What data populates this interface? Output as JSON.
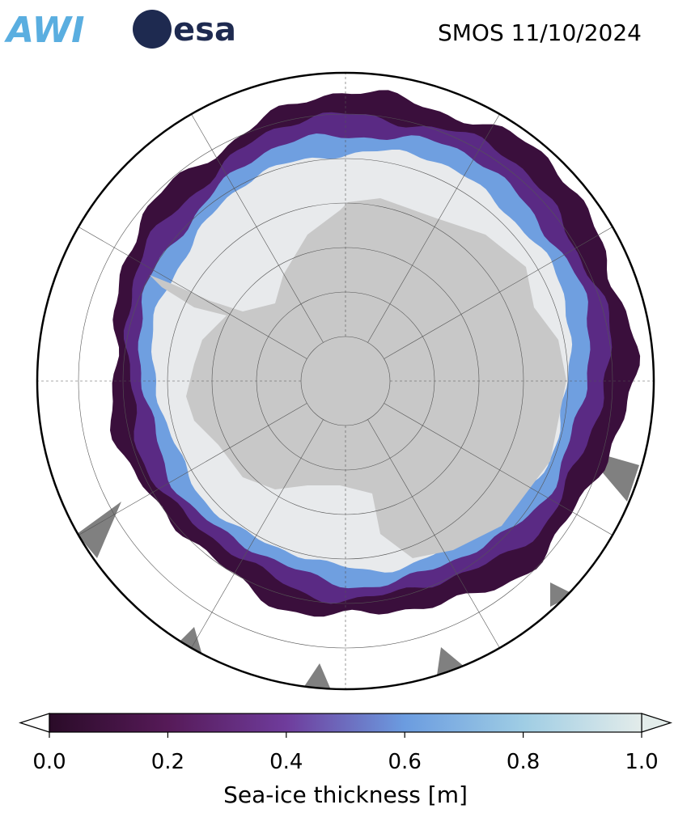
{
  "header": {
    "logos": [
      "AWI",
      "esa"
    ],
    "title": "SMOS 11/10/2024"
  },
  "colorbar": {
    "label": "Sea-ice thickness [m]",
    "range": [
      0,
      1
    ],
    "ticks": [
      {
        "value": 0,
        "label": "0.0"
      },
      {
        "value": 0.2,
        "label": "0.2"
      },
      {
        "value": 0.4,
        "label": "0.4"
      },
      {
        "value": 0.6,
        "label": "0.6"
      },
      {
        "value": 0.8,
        "label": "0.8"
      },
      {
        "value": 1,
        "label": "1.0"
      }
    ]
  }
}
